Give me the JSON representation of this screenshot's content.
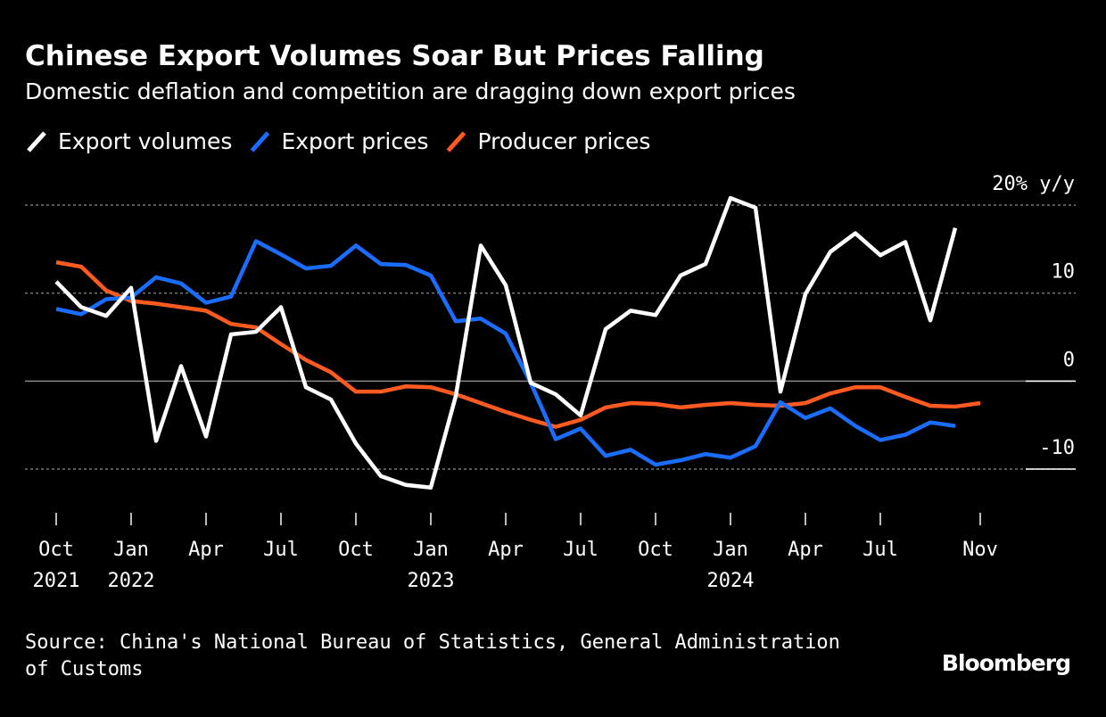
{
  "chart_data": {
    "type": "line",
    "title": "Chinese Export Volumes Soar But Prices Falling",
    "subtitle": "Domestic deflation and competition are dragging down export prices",
    "source": "Source: China's National Bureau of Statistics, General Administration of Customs",
    "brand": "Bloomberg",
    "categories": [
      "Oct",
      null,
      null,
      "Jan",
      null,
      null,
      "Apr",
      null,
      null,
      "Jul",
      null,
      null,
      "Oct",
      null,
      null,
      "Jan",
      null,
      null,
      "Apr",
      null,
      null,
      "Jul",
      null,
      null,
      "Oct",
      null,
      null,
      "Jan",
      null,
      null,
      "Apr",
      null,
      null,
      "Jul",
      null,
      null,
      null,
      "Nov"
    ],
    "years": [
      "2021",
      null,
      null,
      "2022",
      null,
      null,
      null,
      null,
      null,
      null,
      null,
      null,
      null,
      null,
      null,
      "2023",
      null,
      null,
      null,
      null,
      null,
      null,
      null,
      null,
      null,
      null,
      null,
      "2024",
      null,
      null,
      null,
      null,
      null,
      null,
      null,
      null,
      null,
      null
    ],
    "series": [
      {
        "name": "Export volumes",
        "color": "#ffffff",
        "values": [
          11.3,
          8.4,
          7.4,
          10.6,
          -6.8,
          1.7,
          -6.3,
          5.3,
          5.6,
          8.4,
          -0.7,
          -2.1,
          -7.1,
          -10.8,
          -11.8,
          -12.1,
          -1.7,
          15.4,
          10.9,
          -0.2,
          -1.5,
          -3.9,
          5.9,
          8.0,
          7.5,
          12.0,
          13.3,
          20.8,
          19.7,
          -1.2,
          9.9,
          14.7,
          16.8,
          14.3,
          15.8,
          6.9,
          17.4,
          null
        ]
      },
      {
        "name": "Export prices",
        "color": "#1a6dff",
        "values": [
          8.2,
          7.6,
          9.3,
          9.5,
          11.8,
          11.1,
          8.9,
          9.6,
          15.9,
          14.4,
          12.8,
          13.1,
          15.4,
          13.3,
          13.2,
          12.0,
          6.8,
          7.1,
          5.4,
          -0.2,
          -6.6,
          -5.4,
          -8.5,
          -7.8,
          -9.5,
          -9.0,
          -8.3,
          -8.7,
          -7.4,
          -2.4,
          -4.2,
          -3.1,
          -5.1,
          -6.7,
          -6.1,
          -4.7,
          -5.1,
          null
        ]
      },
      {
        "name": "Producer prices",
        "color": "#ff5a1f",
        "values": [
          13.5,
          13.0,
          10.3,
          9.1,
          8.8,
          8.4,
          8.0,
          6.5,
          6.1,
          4.2,
          2.4,
          1.0,
          -1.2,
          -1.2,
          -0.6,
          -0.7,
          -1.5,
          -2.5,
          -3.5,
          -4.4,
          -5.2,
          -4.4,
          -3.0,
          -2.5,
          -2.6,
          -3.0,
          -2.7,
          -2.5,
          -2.7,
          -2.8,
          -2.5,
          -1.4,
          -0.7,
          -0.7,
          -1.8,
          -2.8,
          -2.9,
          -2.5
        ]
      }
    ],
    "ylim": [
      -13,
      21
    ],
    "yticks": [
      -10,
      0,
      10,
      {
        "value": 20,
        "label": "20% y/y"
      }
    ],
    "grid": true
  }
}
